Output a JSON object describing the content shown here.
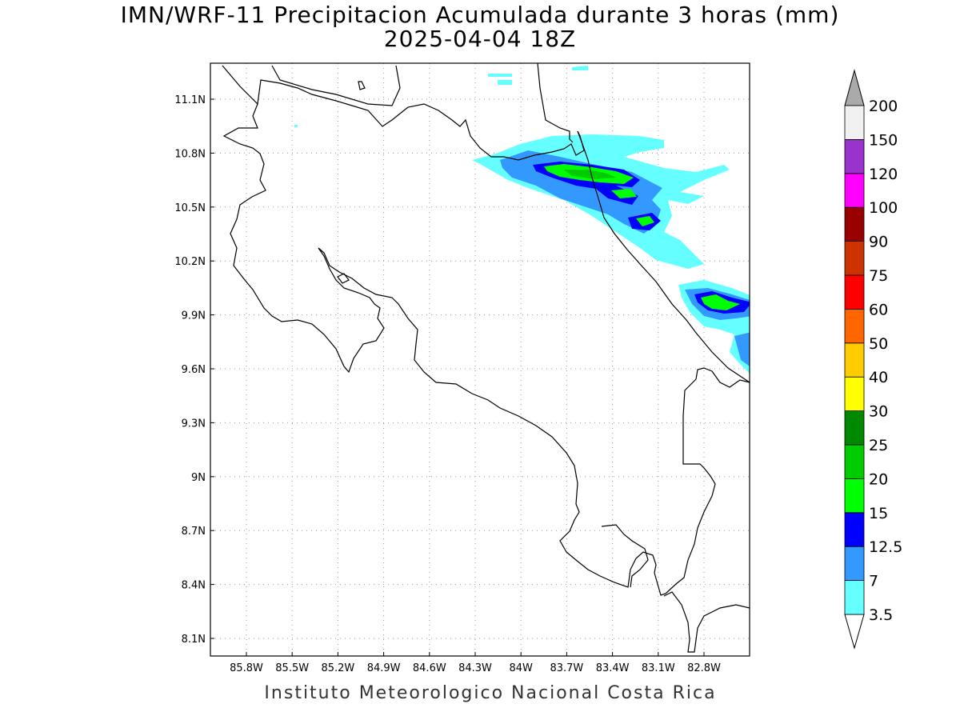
{
  "title": {
    "line1": "IMN/WRF-11 Precipitacion Acumulada durante 3 horas (mm)",
    "line2": "2025-04-04 18Z"
  },
  "footer": "Instituto Meteorologico Nacional Costa Rica",
  "map": {
    "lon_range": [
      -86.0,
      -83.0
    ],
    "lat_range": [
      8.0,
      11.3
    ],
    "lon_ticks": [
      {
        "value": -85.8,
        "label": "85.8W"
      },
      {
        "value": -85.5,
        "label": "85.5W"
      },
      {
        "value": -85.2,
        "label": "85.2W"
      },
      {
        "value": -84.9,
        "label": "84.9W"
      },
      {
        "value": -84.6,
        "label": "84.6W"
      },
      {
        "value": -84.3,
        "label": "84.3W"
      },
      {
        "value": -84.0,
        "label": "84W"
      },
      {
        "value": -83.7,
        "label": "83.7W"
      },
      {
        "value": -83.4,
        "label": "83.4W"
      },
      {
        "value": -83.1,
        "label": "83.1W"
      },
      {
        "value": -82.8,
        "label": "82.8W"
      }
    ],
    "lat_ticks": [
      {
        "value": 11.1,
        "label": "11.1N"
      },
      {
        "value": 10.8,
        "label": "10.8N"
      },
      {
        "value": 10.5,
        "label": "10.5N"
      },
      {
        "value": 10.2,
        "label": "10.2N"
      },
      {
        "value": 9.9,
        "label": "9.9N"
      },
      {
        "value": 9.6,
        "label": "9.6N"
      },
      {
        "value": 9.3,
        "label": "9.3N"
      },
      {
        "value": 9.0,
        "label": "9N"
      },
      {
        "value": 8.7,
        "label": "8.7N"
      },
      {
        "value": 8.4,
        "label": "8.4N"
      },
      {
        "value": 8.1,
        "label": "8.1N"
      }
    ],
    "grid": true,
    "grid_style": "dotted"
  },
  "colorbar": {
    "placement": "right",
    "levels": [
      {
        "label": "3.5",
        "color": "#66ffff"
      },
      {
        "label": "7",
        "color": "#3399ff"
      },
      {
        "label": "12.5",
        "color": "#0000ff"
      },
      {
        "label": "15",
        "color": "#00ff00"
      },
      {
        "label": "20",
        "color": "#00cc00"
      },
      {
        "label": "25",
        "color": "#008800"
      },
      {
        "label": "30",
        "color": "#ffff00"
      },
      {
        "label": "40",
        "color": "#ffcc00"
      },
      {
        "label": "50",
        "color": "#ff6600"
      },
      {
        "label": "60",
        "color": "#ff0000"
      },
      {
        "label": "75",
        "color": "#cc3300"
      },
      {
        "label": "90",
        "color": "#990000"
      },
      {
        "label": "100",
        "color": "#ff00ff"
      },
      {
        "label": "120",
        "color": "#9933cc"
      },
      {
        "label": "150",
        "color": "#f0f0f0"
      },
      {
        "label": "200",
        "color": "#aaaaaa"
      }
    ],
    "under_color": "#ffffff",
    "over_color": "#aaaaaa"
  }
}
